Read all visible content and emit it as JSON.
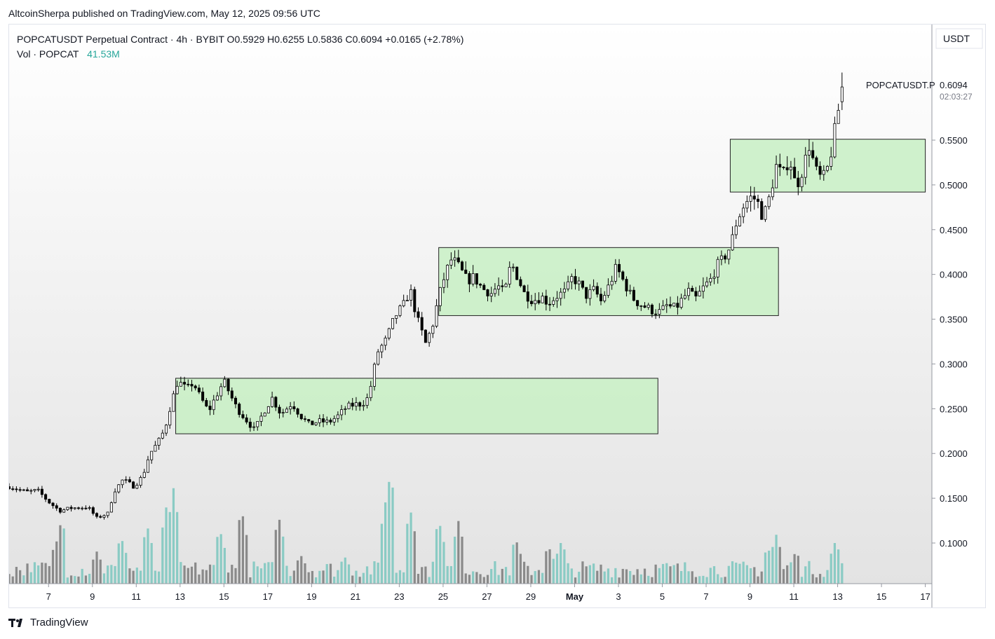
{
  "header": {
    "published_line": "AltcoinSherpa published on TradingView.com, May 12, 2025 09:56 UTC"
  },
  "legend": {
    "line1": "POPCATUSDT Perpetual Contract · 4h · BYBIT  O0.5929  H0.6255  L0.5836  C0.6094  +0.0165 (+2.78%)",
    "vol_label": "Vol · POPCAT",
    "vol_value": "41.53M"
  },
  "footer": {
    "brand": "TradingView"
  },
  "chart_data": {
    "type": "candlestick",
    "symbol": "POPCATUSDT Perpetual Contract",
    "interval": "4h",
    "exchange": "BYBIT",
    "ohlc_last": {
      "open": 0.5929,
      "high": 0.6255,
      "low": 0.5836,
      "close": 0.6094,
      "change": 0.0165,
      "change_pct": 2.78
    },
    "currency_label": "USDT",
    "last_price_label": "0.6094",
    "countdown": "02:03:27",
    "symbol_tag": "POPCATUSDT.P",
    "y_ticks": [
      "0.5500",
      "0.5000",
      "0.4500",
      "0.4000",
      "0.3500",
      "0.3000",
      "0.2500",
      "0.2000",
      "0.1500",
      "0.1000"
    ],
    "y_tick_values": [
      0.55,
      0.5,
      0.45,
      0.4,
      0.35,
      0.3,
      0.25,
      0.2,
      0.15,
      0.1
    ],
    "ylim": [
      0.05,
      0.65
    ],
    "x_ticks": [
      "7",
      "9",
      "11",
      "13",
      "15",
      "17",
      "19",
      "21",
      "23",
      "25",
      "27",
      "29",
      "May",
      "3",
      "5",
      "7",
      "9",
      "11",
      "13",
      "15",
      "17"
    ],
    "x_tick_days": [
      7,
      9,
      11,
      13,
      15,
      17,
      19,
      21,
      23,
      25,
      27,
      29,
      31,
      33,
      35,
      37,
      39,
      41,
      43,
      45,
      47
    ],
    "xlim_days": [
      5.2,
      47.3
    ],
    "x_axis_note": "April 2025 → May 2025; May 1 = day 31",
    "zones": [
      {
        "name": "range-1",
        "day_start": 12.8,
        "day_end": 34.8,
        "y_low": 0.222,
        "y_high": 0.284
      },
      {
        "name": "range-2",
        "day_start": 24.8,
        "day_end": 40.3,
        "y_low": 0.354,
        "y_high": 0.43
      },
      {
        "name": "range-3",
        "day_start": 38.1,
        "day_end": 47.0,
        "y_low": 0.492,
        "y_high": 0.551
      }
    ],
    "close_path": [
      [
        5.2,
        0.163
      ],
      [
        6.0,
        0.157
      ],
      [
        6.5,
        0.159
      ],
      [
        7.0,
        0.146
      ],
      [
        7.5,
        0.136
      ],
      [
        8.0,
        0.139
      ],
      [
        8.8,
        0.14
      ],
      [
        9.2,
        0.128
      ],
      [
        9.7,
        0.133
      ],
      [
        10.0,
        0.158
      ],
      [
        10.4,
        0.171
      ],
      [
        10.9,
        0.163
      ],
      [
        11.3,
        0.175
      ],
      [
        11.6,
        0.199
      ],
      [
        12.0,
        0.213
      ],
      [
        12.3,
        0.227
      ],
      [
        12.6,
        0.257
      ],
      [
        12.9,
        0.281
      ],
      [
        13.3,
        0.272
      ],
      [
        13.6,
        0.279
      ],
      [
        13.9,
        0.264
      ],
      [
        14.3,
        0.247
      ],
      [
        14.6,
        0.262
      ],
      [
        15.0,
        0.281
      ],
      [
        15.3,
        0.265
      ],
      [
        15.6,
        0.25
      ],
      [
        16.0,
        0.238
      ],
      [
        16.4,
        0.226
      ],
      [
        16.8,
        0.246
      ],
      [
        17.2,
        0.262
      ],
      [
        17.6,
        0.244
      ],
      [
        18.1,
        0.256
      ],
      [
        18.5,
        0.242
      ],
      [
        18.9,
        0.232
      ],
      [
        19.3,
        0.236
      ],
      [
        19.8,
        0.235
      ],
      [
        20.2,
        0.242
      ],
      [
        20.6,
        0.252
      ],
      [
        21.0,
        0.255
      ],
      [
        21.3,
        0.255
      ],
      [
        21.6,
        0.263
      ],
      [
        22.0,
        0.313
      ],
      [
        22.4,
        0.327
      ],
      [
        22.8,
        0.353
      ],
      [
        23.2,
        0.366
      ],
      [
        23.5,
        0.383
      ],
      [
        23.8,
        0.352
      ],
      [
        24.2,
        0.323
      ],
      [
        24.5,
        0.341
      ],
      [
        24.8,
        0.375
      ],
      [
        25.1,
        0.401
      ],
      [
        25.4,
        0.418
      ],
      [
        25.7,
        0.409
      ],
      [
        26.1,
        0.393
      ],
      [
        26.4,
        0.397
      ],
      [
        26.8,
        0.384
      ],
      [
        27.2,
        0.379
      ],
      [
        27.5,
        0.387
      ],
      [
        27.8,
        0.378
      ],
      [
        28.1,
        0.413
      ],
      [
        28.4,
        0.397
      ],
      [
        28.7,
        0.379
      ],
      [
        29.1,
        0.371
      ],
      [
        29.5,
        0.375
      ],
      [
        29.8,
        0.368
      ],
      [
        30.2,
        0.376
      ],
      [
        30.6,
        0.381
      ],
      [
        30.9,
        0.397
      ],
      [
        31.2,
        0.389
      ],
      [
        31.5,
        0.376
      ],
      [
        31.9,
        0.383
      ],
      [
        32.2,
        0.37
      ],
      [
        32.6,
        0.389
      ],
      [
        32.9,
        0.408
      ],
      [
        33.3,
        0.389
      ],
      [
        33.6,
        0.375
      ],
      [
        33.9,
        0.368
      ],
      [
        34.3,
        0.363
      ],
      [
        34.6,
        0.359
      ],
      [
        34.9,
        0.358
      ],
      [
        35.2,
        0.365
      ],
      [
        35.6,
        0.362
      ],
      [
        35.9,
        0.372
      ],
      [
        36.2,
        0.381
      ],
      [
        36.5,
        0.372
      ],
      [
        36.9,
        0.386
      ],
      [
        37.2,
        0.394
      ],
      [
        37.5,
        0.41
      ],
      [
        37.8,
        0.418
      ],
      [
        38.1,
        0.431
      ],
      [
        38.4,
        0.46
      ],
      [
        38.7,
        0.476
      ],
      [
        39.0,
        0.486
      ],
      [
        39.3,
        0.484
      ],
      [
        39.6,
        0.463
      ],
      [
        39.9,
        0.487
      ],
      [
        40.2,
        0.521
      ],
      [
        40.5,
        0.51
      ],
      [
        40.8,
        0.531
      ],
      [
        41.1,
        0.497
      ],
      [
        41.4,
        0.517
      ],
      [
        41.7,
        0.544
      ],
      [
        42.0,
        0.516
      ],
      [
        42.3,
        0.505
      ],
      [
        42.6,
        0.522
      ],
      [
        42.9,
        0.565
      ],
      [
        43.1,
        0.593
      ],
      [
        43.3,
        0.609
      ]
    ],
    "volume_ylim": [
      0,
      200
    ],
    "volume_peaks_m": [
      [
        6.2,
        15
      ],
      [
        6.8,
        30
      ],
      [
        7.3,
        52
      ],
      [
        7.6,
        85
      ],
      [
        9.2,
        42
      ],
      [
        10.3,
        62
      ],
      [
        11.5,
        76
      ],
      [
        12.4,
        105
      ],
      [
        12.7,
        125
      ],
      [
        14.8,
        72
      ],
      [
        15.8,
        98
      ],
      [
        17.5,
        88
      ],
      [
        18.5,
        38
      ],
      [
        20.5,
        36
      ],
      [
        22.4,
        112
      ],
      [
        22.6,
        148
      ],
      [
        23.5,
        98
      ],
      [
        24.8,
        84
      ],
      [
        25.7,
        82
      ],
      [
        28.3,
        60
      ],
      [
        29.8,
        50
      ],
      [
        30.4,
        56
      ],
      [
        39.8,
        48
      ],
      [
        40.2,
        64
      ],
      [
        41.1,
        43
      ],
      [
        42.9,
        56
      ],
      [
        43.3,
        28
      ]
    ]
  }
}
